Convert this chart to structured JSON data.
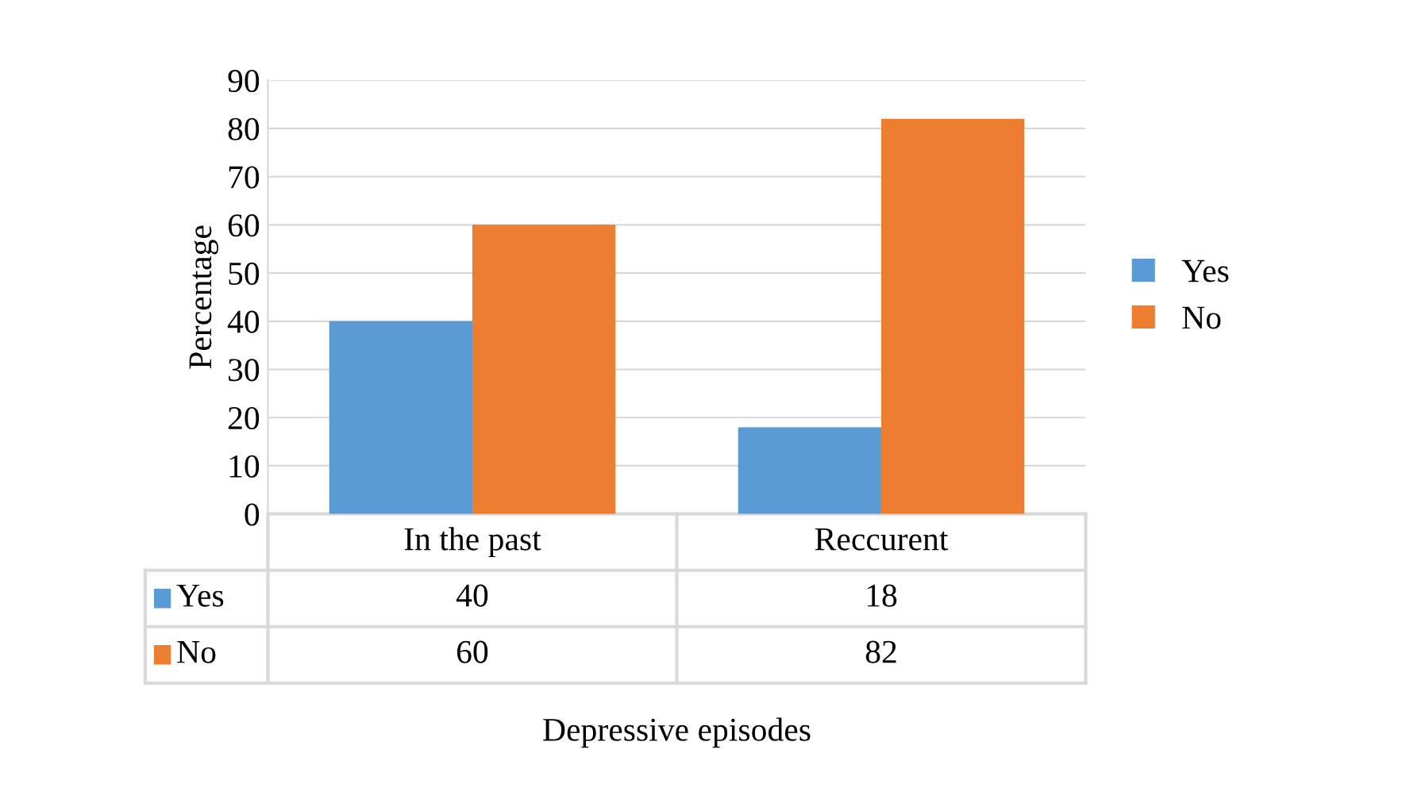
{
  "chart_data": {
    "type": "bar",
    "categories": [
      "In the past",
      "Reccurent"
    ],
    "series": [
      {
        "name": "Yes",
        "color": "#5b9bd5",
        "values": [
          40,
          18
        ]
      },
      {
        "name": "No",
        "color": "#ed7d31",
        "values": [
          60,
          82
        ]
      }
    ],
    "xlabel": "Depressive episodes",
    "ylabel": "Percentage",
    "ylim": [
      0,
      90
    ],
    "yticks": [
      0,
      10,
      20,
      30,
      40,
      50,
      60,
      70,
      80,
      90
    ],
    "grid": "y",
    "legend": "right",
    "data_labels": true
  }
}
